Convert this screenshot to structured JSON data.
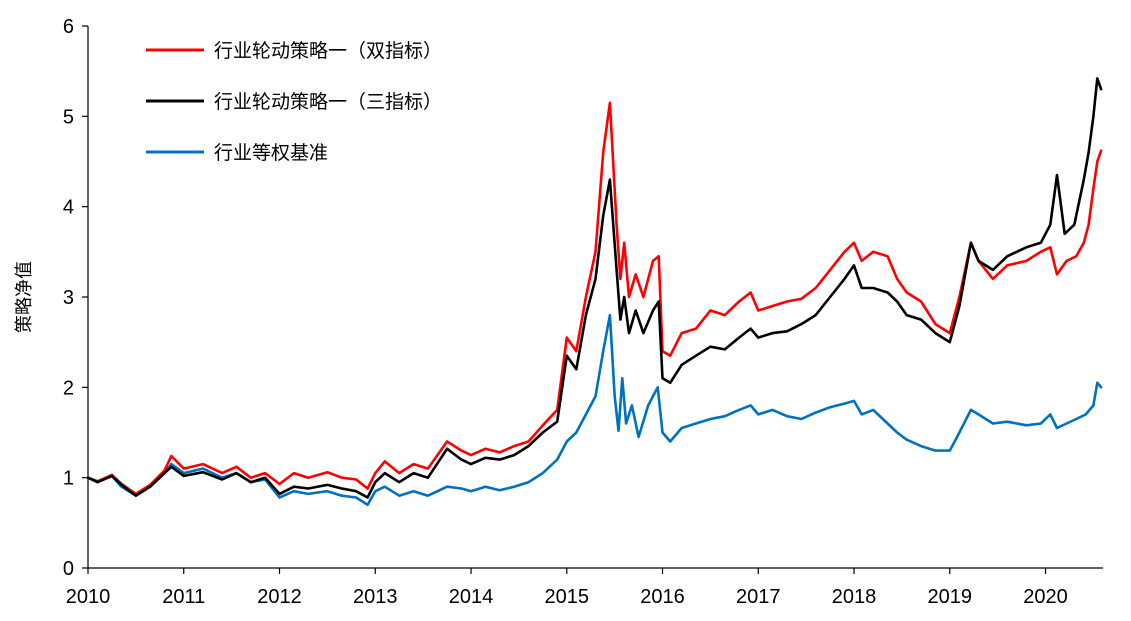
{
  "chart_data": {
    "type": "line",
    "title": "",
    "xlabel": "",
    "ylabel": "策略净值",
    "xlim": [
      2010.0,
      2020.6
    ],
    "ylim": [
      0,
      6
    ],
    "yticks": [
      0,
      1,
      2,
      3,
      4,
      5,
      6
    ],
    "xticks": [
      "2010",
      "2011",
      "2012",
      "2013",
      "2014",
      "2015",
      "2016",
      "2017",
      "2018",
      "2019",
      "2020"
    ],
    "grid": false,
    "legend_position": "top-left",
    "series": [
      {
        "name": "行业轮动策略一（双指标）",
        "color": "#ff0000",
        "points": [
          [
            2010.0,
            1.0
          ],
          [
            2010.1,
            0.96
          ],
          [
            2010.25,
            1.03
          ],
          [
            2010.35,
            0.93
          ],
          [
            2010.5,
            0.82
          ],
          [
            2010.65,
            0.92
          ],
          [
            2010.8,
            1.08
          ],
          [
            2010.87,
            1.24
          ],
          [
            2011.0,
            1.1
          ],
          [
            2011.2,
            1.15
          ],
          [
            2011.4,
            1.05
          ],
          [
            2011.55,
            1.12
          ],
          [
            2011.7,
            1.0
          ],
          [
            2011.85,
            1.05
          ],
          [
            2012.0,
            0.93
          ],
          [
            2012.15,
            1.05
          ],
          [
            2012.3,
            1.0
          ],
          [
            2012.5,
            1.06
          ],
          [
            2012.65,
            1.0
          ],
          [
            2012.8,
            0.98
          ],
          [
            2012.92,
            0.88
          ],
          [
            2013.0,
            1.05
          ],
          [
            2013.1,
            1.18
          ],
          [
            2013.25,
            1.05
          ],
          [
            2013.4,
            1.15
          ],
          [
            2013.55,
            1.1
          ],
          [
            2013.75,
            1.4
          ],
          [
            2013.9,
            1.3
          ],
          [
            2014.0,
            1.25
          ],
          [
            2014.15,
            1.32
          ],
          [
            2014.3,
            1.28
          ],
          [
            2014.45,
            1.35
          ],
          [
            2014.6,
            1.4
          ],
          [
            2014.75,
            1.58
          ],
          [
            2014.9,
            1.75
          ],
          [
            2015.0,
            2.55
          ],
          [
            2015.1,
            2.4
          ],
          [
            2015.2,
            3.0
          ],
          [
            2015.3,
            3.5
          ],
          [
            2015.38,
            4.6
          ],
          [
            2015.45,
            5.15
          ],
          [
            2015.52,
            3.8
          ],
          [
            2015.56,
            3.2
          ],
          [
            2015.6,
            3.6
          ],
          [
            2015.65,
            3.0
          ],
          [
            2015.72,
            3.25
          ],
          [
            2015.8,
            3.0
          ],
          [
            2015.9,
            3.4
          ],
          [
            2015.96,
            3.45
          ],
          [
            2016.0,
            2.4
          ],
          [
            2016.08,
            2.35
          ],
          [
            2016.2,
            2.6
          ],
          [
            2016.35,
            2.65
          ],
          [
            2016.5,
            2.85
          ],
          [
            2016.65,
            2.8
          ],
          [
            2016.8,
            2.95
          ],
          [
            2016.92,
            3.05
          ],
          [
            2017.0,
            2.85
          ],
          [
            2017.15,
            2.9
          ],
          [
            2017.3,
            2.95
          ],
          [
            2017.45,
            2.98
          ],
          [
            2017.6,
            3.1
          ],
          [
            2017.75,
            3.3
          ],
          [
            2017.9,
            3.5
          ],
          [
            2018.0,
            3.6
          ],
          [
            2018.08,
            3.4
          ],
          [
            2018.2,
            3.5
          ],
          [
            2018.35,
            3.45
          ],
          [
            2018.45,
            3.2
          ],
          [
            2018.55,
            3.05
          ],
          [
            2018.7,
            2.95
          ],
          [
            2018.85,
            2.7
          ],
          [
            2019.0,
            2.6
          ],
          [
            2019.1,
            3.0
          ],
          [
            2019.22,
            3.6
          ],
          [
            2019.3,
            3.4
          ],
          [
            2019.45,
            3.2
          ],
          [
            2019.6,
            3.35
          ],
          [
            2019.8,
            3.4
          ],
          [
            2019.95,
            3.5
          ],
          [
            2020.05,
            3.55
          ],
          [
            2020.12,
            3.25
          ],
          [
            2020.22,
            3.4
          ],
          [
            2020.32,
            3.45
          ],
          [
            2020.4,
            3.6
          ],
          [
            2020.45,
            3.8
          ],
          [
            2020.5,
            4.2
          ],
          [
            2020.54,
            4.5
          ],
          [
            2020.58,
            4.62
          ]
        ]
      },
      {
        "name": "行业轮动策略一（三指标）",
        "color": "#000000",
        "points": [
          [
            2010.0,
            1.0
          ],
          [
            2010.1,
            0.95
          ],
          [
            2010.25,
            1.02
          ],
          [
            2010.35,
            0.92
          ],
          [
            2010.5,
            0.8
          ],
          [
            2010.65,
            0.9
          ],
          [
            2010.8,
            1.05
          ],
          [
            2010.87,
            1.12
          ],
          [
            2011.0,
            1.02
          ],
          [
            2011.2,
            1.06
          ],
          [
            2011.4,
            0.98
          ],
          [
            2011.55,
            1.05
          ],
          [
            2011.7,
            0.95
          ],
          [
            2011.85,
            1.0
          ],
          [
            2012.0,
            0.82
          ],
          [
            2012.15,
            0.9
          ],
          [
            2012.3,
            0.88
          ],
          [
            2012.5,
            0.92
          ],
          [
            2012.65,
            0.88
          ],
          [
            2012.8,
            0.85
          ],
          [
            2012.92,
            0.78
          ],
          [
            2013.0,
            0.95
          ],
          [
            2013.1,
            1.05
          ],
          [
            2013.25,
            0.95
          ],
          [
            2013.4,
            1.05
          ],
          [
            2013.55,
            1.0
          ],
          [
            2013.75,
            1.32
          ],
          [
            2013.9,
            1.2
          ],
          [
            2014.0,
            1.15
          ],
          [
            2014.15,
            1.22
          ],
          [
            2014.3,
            1.2
          ],
          [
            2014.45,
            1.25
          ],
          [
            2014.6,
            1.35
          ],
          [
            2014.75,
            1.5
          ],
          [
            2014.9,
            1.62
          ],
          [
            2015.0,
            2.35
          ],
          [
            2015.1,
            2.2
          ],
          [
            2015.2,
            2.8
          ],
          [
            2015.3,
            3.2
          ],
          [
            2015.38,
            3.9
          ],
          [
            2015.45,
            4.3
          ],
          [
            2015.52,
            3.3
          ],
          [
            2015.56,
            2.75
          ],
          [
            2015.6,
            3.0
          ],
          [
            2015.65,
            2.6
          ],
          [
            2015.72,
            2.85
          ],
          [
            2015.8,
            2.6
          ],
          [
            2015.9,
            2.85
          ],
          [
            2015.96,
            2.95
          ],
          [
            2016.0,
            2.1
          ],
          [
            2016.08,
            2.05
          ],
          [
            2016.2,
            2.25
          ],
          [
            2016.35,
            2.35
          ],
          [
            2016.5,
            2.45
          ],
          [
            2016.65,
            2.42
          ],
          [
            2016.8,
            2.55
          ],
          [
            2016.92,
            2.65
          ],
          [
            2017.0,
            2.55
          ],
          [
            2017.15,
            2.6
          ],
          [
            2017.3,
            2.62
          ],
          [
            2017.45,
            2.7
          ],
          [
            2017.6,
            2.8
          ],
          [
            2017.75,
            3.0
          ],
          [
            2017.9,
            3.2
          ],
          [
            2018.0,
            3.35
          ],
          [
            2018.08,
            3.1
          ],
          [
            2018.2,
            3.1
          ],
          [
            2018.35,
            3.05
          ],
          [
            2018.45,
            2.95
          ],
          [
            2018.55,
            2.8
          ],
          [
            2018.7,
            2.75
          ],
          [
            2018.85,
            2.6
          ],
          [
            2019.0,
            2.5
          ],
          [
            2019.1,
            2.9
          ],
          [
            2019.22,
            3.6
          ],
          [
            2019.3,
            3.4
          ],
          [
            2019.45,
            3.3
          ],
          [
            2019.6,
            3.45
          ],
          [
            2019.8,
            3.55
          ],
          [
            2019.95,
            3.6
          ],
          [
            2020.05,
            3.8
          ],
          [
            2020.12,
            4.35
          ],
          [
            2020.2,
            3.7
          ],
          [
            2020.3,
            3.8
          ],
          [
            2020.4,
            4.3
          ],
          [
            2020.45,
            4.6
          ],
          [
            2020.5,
            5.0
          ],
          [
            2020.54,
            5.42
          ],
          [
            2020.58,
            5.3
          ]
        ]
      },
      {
        "name": "行业等权基准",
        "color": "#0070c0",
        "points": [
          [
            2010.0,
            1.0
          ],
          [
            2010.1,
            0.96
          ],
          [
            2010.25,
            1.02
          ],
          [
            2010.35,
            0.9
          ],
          [
            2010.5,
            0.8
          ],
          [
            2010.65,
            0.92
          ],
          [
            2010.8,
            1.05
          ],
          [
            2010.87,
            1.15
          ],
          [
            2011.0,
            1.05
          ],
          [
            2011.2,
            1.1
          ],
          [
            2011.4,
            1.0
          ],
          [
            2011.55,
            1.05
          ],
          [
            2011.7,
            0.95
          ],
          [
            2011.85,
            0.98
          ],
          [
            2012.0,
            0.78
          ],
          [
            2012.15,
            0.85
          ],
          [
            2012.3,
            0.82
          ],
          [
            2012.5,
            0.85
          ],
          [
            2012.65,
            0.8
          ],
          [
            2012.8,
            0.78
          ],
          [
            2012.92,
            0.7
          ],
          [
            2013.0,
            0.85
          ],
          [
            2013.1,
            0.9
          ],
          [
            2013.25,
            0.8
          ],
          [
            2013.4,
            0.85
          ],
          [
            2013.55,
            0.8
          ],
          [
            2013.75,
            0.9
          ],
          [
            2013.9,
            0.88
          ],
          [
            2014.0,
            0.85
          ],
          [
            2014.15,
            0.9
          ],
          [
            2014.3,
            0.86
          ],
          [
            2014.45,
            0.9
          ],
          [
            2014.6,
            0.95
          ],
          [
            2014.75,
            1.05
          ],
          [
            2014.9,
            1.2
          ],
          [
            2015.0,
            1.4
          ],
          [
            2015.1,
            1.5
          ],
          [
            2015.2,
            1.7
          ],
          [
            2015.3,
            1.9
          ],
          [
            2015.38,
            2.4
          ],
          [
            2015.45,
            2.8
          ],
          [
            2015.5,
            1.9
          ],
          [
            2015.54,
            1.52
          ],
          [
            2015.58,
            2.1
          ],
          [
            2015.62,
            1.6
          ],
          [
            2015.68,
            1.8
          ],
          [
            2015.75,
            1.45
          ],
          [
            2015.85,
            1.8
          ],
          [
            2015.95,
            2.0
          ],
          [
            2016.0,
            1.5
          ],
          [
            2016.08,
            1.4
          ],
          [
            2016.2,
            1.55
          ],
          [
            2016.35,
            1.6
          ],
          [
            2016.5,
            1.65
          ],
          [
            2016.65,
            1.68
          ],
          [
            2016.8,
            1.75
          ],
          [
            2016.92,
            1.8
          ],
          [
            2017.0,
            1.7
          ],
          [
            2017.15,
            1.75
          ],
          [
            2017.3,
            1.68
          ],
          [
            2017.45,
            1.65
          ],
          [
            2017.6,
            1.72
          ],
          [
            2017.75,
            1.78
          ],
          [
            2017.9,
            1.82
          ],
          [
            2018.0,
            1.85
          ],
          [
            2018.08,
            1.7
          ],
          [
            2018.2,
            1.75
          ],
          [
            2018.35,
            1.6
          ],
          [
            2018.45,
            1.5
          ],
          [
            2018.55,
            1.42
          ],
          [
            2018.7,
            1.35
          ],
          [
            2018.85,
            1.3
          ],
          [
            2019.0,
            1.3
          ],
          [
            2019.1,
            1.5
          ],
          [
            2019.22,
            1.75
          ],
          [
            2019.3,
            1.7
          ],
          [
            2019.45,
            1.6
          ],
          [
            2019.6,
            1.62
          ],
          [
            2019.8,
            1.58
          ],
          [
            2019.95,
            1.6
          ],
          [
            2020.05,
            1.7
          ],
          [
            2020.12,
            1.55
          ],
          [
            2020.22,
            1.6
          ],
          [
            2020.32,
            1.65
          ],
          [
            2020.42,
            1.7
          ],
          [
            2020.5,
            1.8
          ],
          [
            2020.54,
            2.05
          ],
          [
            2020.58,
            2.0
          ]
        ]
      }
    ]
  }
}
